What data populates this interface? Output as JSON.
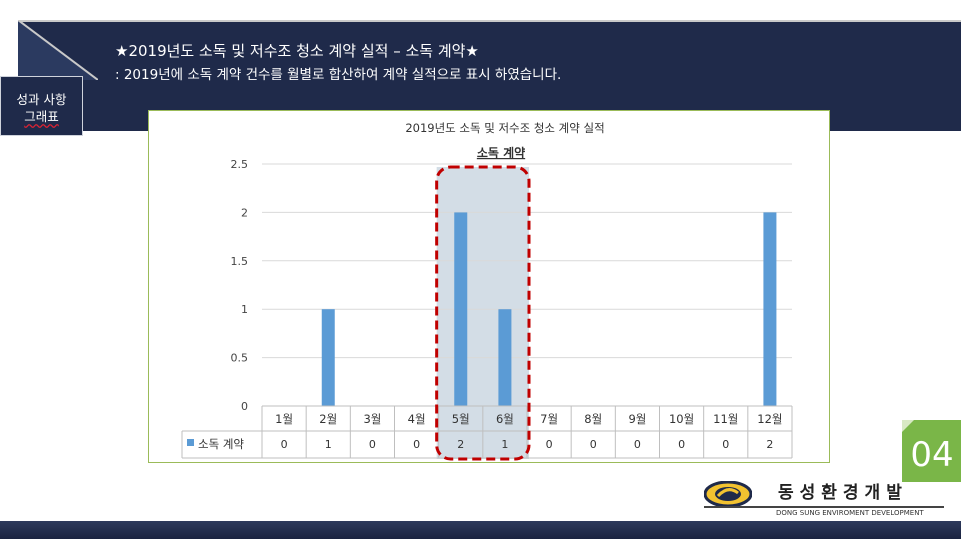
{
  "header": {
    "title": "★2019년도 소독 및 저수조 청소 계약 실적 – 소독 계약★",
    "subtitle": ":   2019년에 소독 계약 건수를 월별로 합산하여 계약 실적으로 표시 하였습니다."
  },
  "side_tab": {
    "line1": "성과 사항",
    "line2": "그래표"
  },
  "page_number": "04",
  "logo": {
    "name": "동성환경개발",
    "subtitle": "DONG SUNG ENVIROMENT DEVELOPMENT"
  },
  "colors": {
    "navy": "#1f2a4a",
    "bar": "#5b9bd5",
    "highlight_border": "#c00000",
    "badge": "#7ab648"
  },
  "chart_data": {
    "type": "bar",
    "title": "2019년도 소독 및 저수조 청소 계약 실적",
    "subtitle": "소독 계약",
    "categories": [
      "1월",
      "2월",
      "3월",
      "4월",
      "5월",
      "6월",
      "7월",
      "8월",
      "9월",
      "10월",
      "11월",
      "12월"
    ],
    "series": [
      {
        "name": "소독 계약",
        "values": [
          0,
          1,
          0,
          0,
          2,
          1,
          0,
          0,
          0,
          0,
          0,
          2
        ]
      }
    ],
    "y_ticks": [
      "0",
      "0.5",
      "1",
      "1.5",
      "2",
      "2.5"
    ],
    "ylim": [
      0,
      2.5
    ],
    "grid": true,
    "data_table": true,
    "highlight_categories": [
      "5월",
      "6월"
    ]
  }
}
